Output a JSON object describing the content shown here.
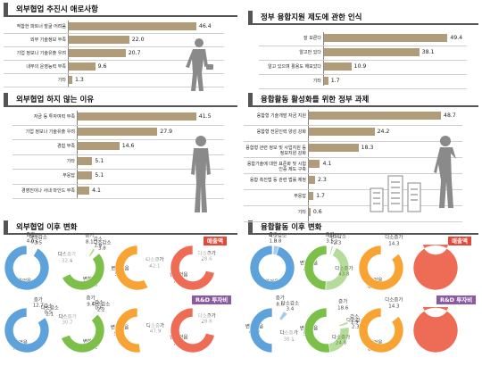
{
  "chart_data": [
    {
      "type": "bar",
      "title": "외부협업 추진시 애로사항",
      "categories": [
        "적합한 파트너 발굴 어려움",
        "외부 기술정보 부족",
        "기업 정보나 기술유출 우려",
        "내부의 운영능력 부족",
        "기타"
      ],
      "values": [
        46.4,
        22.0,
        20.7,
        9.6,
        1.3
      ],
      "labels": [
        "46.4",
        "22.0",
        "20.7",
        "9.6",
        "1.3"
      ],
      "xlim": [
        0,
        50
      ]
    },
    {
      "type": "bar",
      "title": "정부 융합지원 제도에 관한 인식",
      "categories": [
        "잘 모른다",
        "알고만 있다",
        "알고 있으며 활용도 해보았다",
        "기타"
      ],
      "values": [
        49.4,
        38.1,
        10.9,
        1.7
      ],
      "labels": [
        "49.4",
        "38.1",
        "10.9",
        "1.7"
      ],
      "xlim": [
        0,
        50
      ]
    },
    {
      "type": "bar",
      "title": "외부협업 하지 않는 이유",
      "categories": [
        "자금 등 투자여력 부족",
        "기업 정보나 기술유출 우려",
        "경험 부족",
        "기타",
        "무응답",
        "경영진이나 사내 마인드 부족"
      ],
      "values": [
        41.5,
        27.9,
        14.6,
        5.1,
        5.1,
        4.1
      ],
      "labels": [
        "41.5",
        "27.9",
        "14.6",
        "5.1",
        "5.1",
        "4.1"
      ],
      "xlim": [
        0,
        45
      ]
    },
    {
      "type": "bar",
      "title": "융합활동 활성화를 위한 정부 과제",
      "categories": [
        "융합형 기술개발 자금 지원",
        "융합형 전문인력 양성 강화",
        "융합형 관련 정보 및 사업지원 등 정보지원 강화",
        "융합기술에 대한 표준화 및 시험 인증 제도 구축",
        "융합 촉진법 등 관련 법률 제정",
        "무응답",
        "기타"
      ],
      "values": [
        48.7,
        24.2,
        18.3,
        4.1,
        2.3,
        1.7,
        0.6
      ],
      "labels": [
        "48.7",
        "24.2",
        "18.3",
        "4.1",
        "2.3",
        "1.7",
        "0.6"
      ],
      "xlim": [
        0,
        50
      ]
    },
    {
      "type": "pie",
      "title": "외부협업 이후 변화",
      "subtitle": "매출액",
      "charts": [
        {
          "slices": [
            {
              "label": "증가",
              "value": 4.0
            },
            {
              "label": "감소",
              "value": 0.6
            },
            {
              "label": "다소감소",
              "value": 3.5
            },
            {
              "label": "변화없음",
              "value": 91.9
            }
          ]
        },
        {
          "slices": [
            {
              "label": "증가",
              "value": 8.1
            },
            {
              "label": "감소",
              "value": 1.9
            },
            {
              "label": "다소감소",
              "value": 3.8
            },
            {
              "label": "변화없음",
              "value": 53.8
            },
            {
              "label": "다소증가",
              "value": 32.4
            }
          ]
        },
        {
          "slices": [
            {
              "label": "다소증가",
              "value": 42.1
            },
            {
              "label": "변화없음",
              "value": 57.9
            }
          ]
        },
        {
          "slices": [
            {
              "label": "다소증가",
              "value": 28.6
            },
            {
              "label": "변화없음",
              "value": 71.4
            }
          ]
        }
      ]
    },
    {
      "type": "pie",
      "title": "외부협업 이후 변화",
      "subtitle": "R&D 투자비",
      "charts": [
        {
          "slices": [
            {
              "label": "증가",
              "value": 12.7
            },
            {
              "label": "감소",
              "value": 0.5
            },
            {
              "label": "다소감소",
              "value": 2.1
            },
            {
              "label": "변화없음",
              "value": 84.7
            }
          ]
        },
        {
          "slices": [
            {
              "label": "증가",
              "value": 9.4
            },
            {
              "label": "감소",
              "value": 0.6
            },
            {
              "label": "다소감소",
              "value": 2.2
            },
            {
              "label": "변화없음",
              "value": 57.1
            },
            {
              "label": "다소증가",
              "value": 30.7
            }
          ]
        },
        {
          "slices": [
            {
              "label": "다소증가",
              "value": 47.9
            },
            {
              "label": "변화없음",
              "value": 52.1
            }
          ]
        },
        {
          "slices": [
            {
              "label": "다소증가",
              "value": 28.6
            },
            {
              "label": "변화없음",
              "value": 71.4
            }
          ]
        }
      ]
    },
    {
      "type": "pie",
      "title": "융합활동 이후 변화",
      "subtitle": "매출액",
      "charts": [
        {
          "slices": [
            {
              "label": "증가",
              "value": 1.0
            },
            {
              "label": "다소감소",
              "value": 3.8
            },
            {
              "label": "변화없음",
              "value": 94.9
            }
          ]
        },
        {
          "slices": [
            {
              "label": "증가",
              "value": 3.5
            },
            {
              "label": "감소",
              "value": 1.2
            },
            {
              "label": "다소감소",
              "value": 2.3
            },
            {
              "label": "다소증가",
              "value": 43.8
            },
            {
              "label": "변화없음",
              "value": 49.2
            }
          ]
        },
        {
          "slices": [
            {
              "label": "다소증가",
              "value": 14.3
            },
            {
              "label": "변화없음",
              "value": 85.7
            }
          ]
        },
        {
          "slices": [
            {
              "label": "변화없음",
              "value": 100.0
            }
          ]
        }
      ]
    },
    {
      "type": "pie",
      "title": "융합활동 이후 변화",
      "subtitle": "R&D 투자비",
      "charts": [
        {
          "slices": [
            {
              "label": "증가",
              "value": 8.6
            },
            {
              "label": "다소감소",
              "value": 3.4
            },
            {
              "label": "다소증가",
              "value": 38.1
            },
            {
              "label": "변화없음",
              "value": 49.9
            }
          ]
        },
        {
          "slices": [
            {
              "label": "증가",
              "value": 18.6
            },
            {
              "label": "감소",
              "value": 1.9
            },
            {
              "label": "다소감소",
              "value": 2.3
            },
            {
              "label": "다소증가",
              "value": 24.8
            },
            {
              "label": "변화없음",
              "value": 52.4
            }
          ]
        },
        {
          "slices": [
            {
              "label": "다소증가",
              "value": 14.3
            },
            {
              "label": "변화없음",
              "value": 85.7
            }
          ]
        },
        {
          "slices": [
            {
              "label": "변화없음",
              "value": 100.0
            }
          ]
        }
      ]
    }
  ],
  "colors": {
    "bar": "#b19c79",
    "ring_blue": "#5ea2dc",
    "ring_green": "#7cc04a",
    "ring_orange": "#f7a434",
    "ring_red": "#ee6b55",
    "badge_red": "#e04a3a",
    "badge_purple": "#8a5aa2"
  },
  "icons": [
    "businessman-silhouette",
    "thinking-man-silhouette",
    "office-buildings"
  ]
}
